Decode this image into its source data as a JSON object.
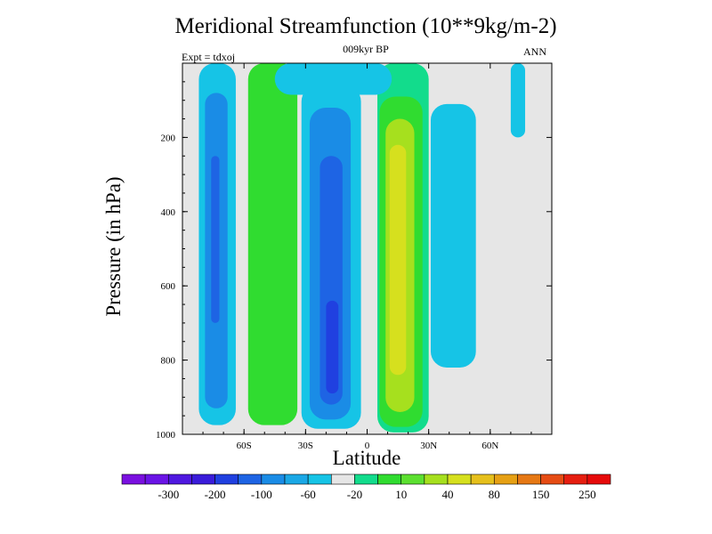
{
  "chart_data": {
    "type": "heatmap",
    "title": "Meridional Streamfunction (10**9kg/m-2)",
    "subtitle": "009kyr BP",
    "left_label": "Expt = tdxoj",
    "right_label": "ANN",
    "xlabel": "Latitude",
    "ylabel": "Pressure (in hPa)",
    "x_ticks": [
      {
        "value": -60,
        "label": "60S"
      },
      {
        "value": -30,
        "label": "30S"
      },
      {
        "value": 0,
        "label": "0"
      },
      {
        "value": 30,
        "label": "30N"
      },
      {
        "value": 60,
        "label": "60N"
      }
    ],
    "y_ticks": [
      {
        "value": 200,
        "label": "200"
      },
      {
        "value": 400,
        "label": "400"
      },
      {
        "value": 600,
        "label": "600"
      },
      {
        "value": 800,
        "label": "800"
      },
      {
        "value": 1000,
        "label": "1000"
      }
    ],
    "xlim": [
      -90,
      90
    ],
    "ylim": [
      1000,
      0
    ],
    "grid": false,
    "colorbar": {
      "placement": "bottom",
      "colors": [
        "#7a10e0",
        "#6a14e6",
        "#4f18e0",
        "#3a1cda",
        "#2040e0",
        "#1e64e4",
        "#1a8ce6",
        "#1aa8e6",
        "#16c4e6",
        "#e6e6e6",
        "#12dc8c",
        "#30dc30",
        "#5ce030",
        "#a6e01e",
        "#d6e01e",
        "#e6c01c",
        "#e6a014",
        "#e67814",
        "#e64c14",
        "#e61e10",
        "#e60a0a"
      ],
      "labels": [
        {
          "after_bin": 1,
          "text": "-300"
        },
        {
          "after_bin": 3,
          "text": "-200"
        },
        {
          "after_bin": 5,
          "text": "-100"
        },
        {
          "after_bin": 7,
          "text": "-60"
        },
        {
          "after_bin": 9,
          "text": "-20"
        },
        {
          "after_bin": 11,
          "text": "10"
        },
        {
          "after_bin": 13,
          "text": "40"
        },
        {
          "after_bin": 15,
          "text": "80"
        },
        {
          "after_bin": 17,
          "text": "150"
        },
        {
          "after_bin": 19,
          "text": "250"
        }
      ]
    },
    "fields": [
      {
        "name": "southern polar cell",
        "level": -20,
        "color": "#16c4e6",
        "lat_range": [
          -82,
          -64
        ],
        "pressure_range": [
          0,
          975
        ]
      },
      {
        "name": "southern polar cell core",
        "level": -60,
        "color": "#1a8ce6",
        "lat_range": [
          -79,
          -68
        ],
        "pressure_range": [
          80,
          930
        ]
      },
      {
        "name": "southern polar cell inner",
        "level": -100,
        "color": "#1e64e4",
        "lat_range": [
          -76,
          -72
        ],
        "pressure_range": [
          250,
          700
        ]
      },
      {
        "name": "southern mid-latitude cell",
        "level": 40,
        "color": "#30dc30",
        "lat_range": [
          -58,
          -34
        ],
        "pressure_range": [
          0,
          975
        ]
      },
      {
        "name": "southern hadley cell outer",
        "level": -20,
        "color": "#16c4e6",
        "lat_range": [
          -32,
          -3
        ],
        "pressure_range": [
          60,
          985
        ]
      },
      {
        "name": "southern hadley cell",
        "level": -60,
        "color": "#1a8ce6",
        "lat_range": [
          -28,
          -8
        ],
        "pressure_range": [
          120,
          960
        ]
      },
      {
        "name": "southern hadley cell core",
        "level": -100,
        "color": "#1e64e4",
        "lat_range": [
          -23,
          -12
        ],
        "pressure_range": [
          250,
          920
        ]
      },
      {
        "name": "southern hadley cell max",
        "level": -200,
        "color": "#2040e0",
        "lat_range": [
          -20,
          -14
        ],
        "pressure_range": [
          640,
          890
        ]
      },
      {
        "name": "northern hadley cell outer",
        "level": 10,
        "color": "#12dc8c",
        "lat_range": [
          5,
          30
        ],
        "pressure_range": [
          0,
          995
        ]
      },
      {
        "name": "northern hadley cell",
        "level": 40,
        "color": "#30dc30",
        "lat_range": [
          6,
          27
        ],
        "pressure_range": [
          90,
          980
        ]
      },
      {
        "name": "northern hadley cell core",
        "level": 80,
        "color": "#a6e01e",
        "lat_range": [
          9,
          23
        ],
        "pressure_range": [
          150,
          940
        ]
      },
      {
        "name": "northern hadley cell max",
        "level": 150,
        "color": "#d6e01e",
        "lat_range": [
          11,
          19
        ],
        "pressure_range": [
          220,
          840
        ]
      },
      {
        "name": "northern ferrel cell",
        "level": -20,
        "color": "#16c4e6",
        "lat_range": [
          31,
          53
        ],
        "pressure_range": [
          110,
          820
        ]
      },
      {
        "name": "northern polar cell",
        "level": -20,
        "color": "#16c4e6",
        "lat_range": [
          70,
          77
        ],
        "pressure_range": [
          0,
          200
        ]
      },
      {
        "name": "stratospheric band",
        "level": -20,
        "color": "#16c4e6",
        "lat_range": [
          -45,
          12
        ],
        "pressure_range": [
          0,
          85
        ]
      }
    ]
  }
}
